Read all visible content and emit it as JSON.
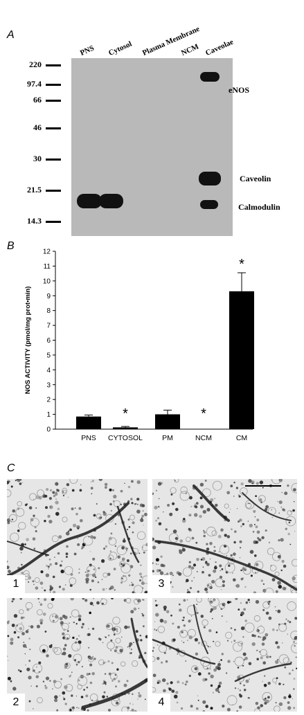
{
  "panel_a": {
    "letter": "A",
    "lanes": [
      "PNS",
      "Cytosol",
      "Plasma Membrane",
      "NCM",
      "Caveolae"
    ],
    "markers": [
      "220",
      "97.4",
      "66",
      "46",
      "30",
      "21.5",
      "14.3"
    ],
    "bands": [
      "eNOS",
      "Caveolin",
      "Calmodulin"
    ]
  },
  "panel_b": {
    "letter": "B"
  },
  "chart_data": {
    "type": "bar",
    "categories": [
      "PNS",
      "CYTOSOL",
      "PM",
      "NCM",
      "CM"
    ],
    "values": [
      0.85,
      0.12,
      1.0,
      0.0,
      9.3
    ],
    "errors": [
      0.1,
      0.06,
      0.28,
      0.0,
      1.25
    ],
    "significance": [
      "",
      "*",
      "",
      "*",
      "*"
    ],
    "ylabel": "NOS ACTIVITY (pmol/mg prot•min)",
    "ylim": [
      0,
      12
    ],
    "yticks": [
      0,
      1,
      2,
      3,
      4,
      5,
      6,
      7,
      8,
      9,
      10,
      11,
      12
    ],
    "color": "#000000"
  },
  "panel_c": {
    "letter": "C",
    "images": [
      "1",
      "2",
      "3",
      "4"
    ]
  }
}
